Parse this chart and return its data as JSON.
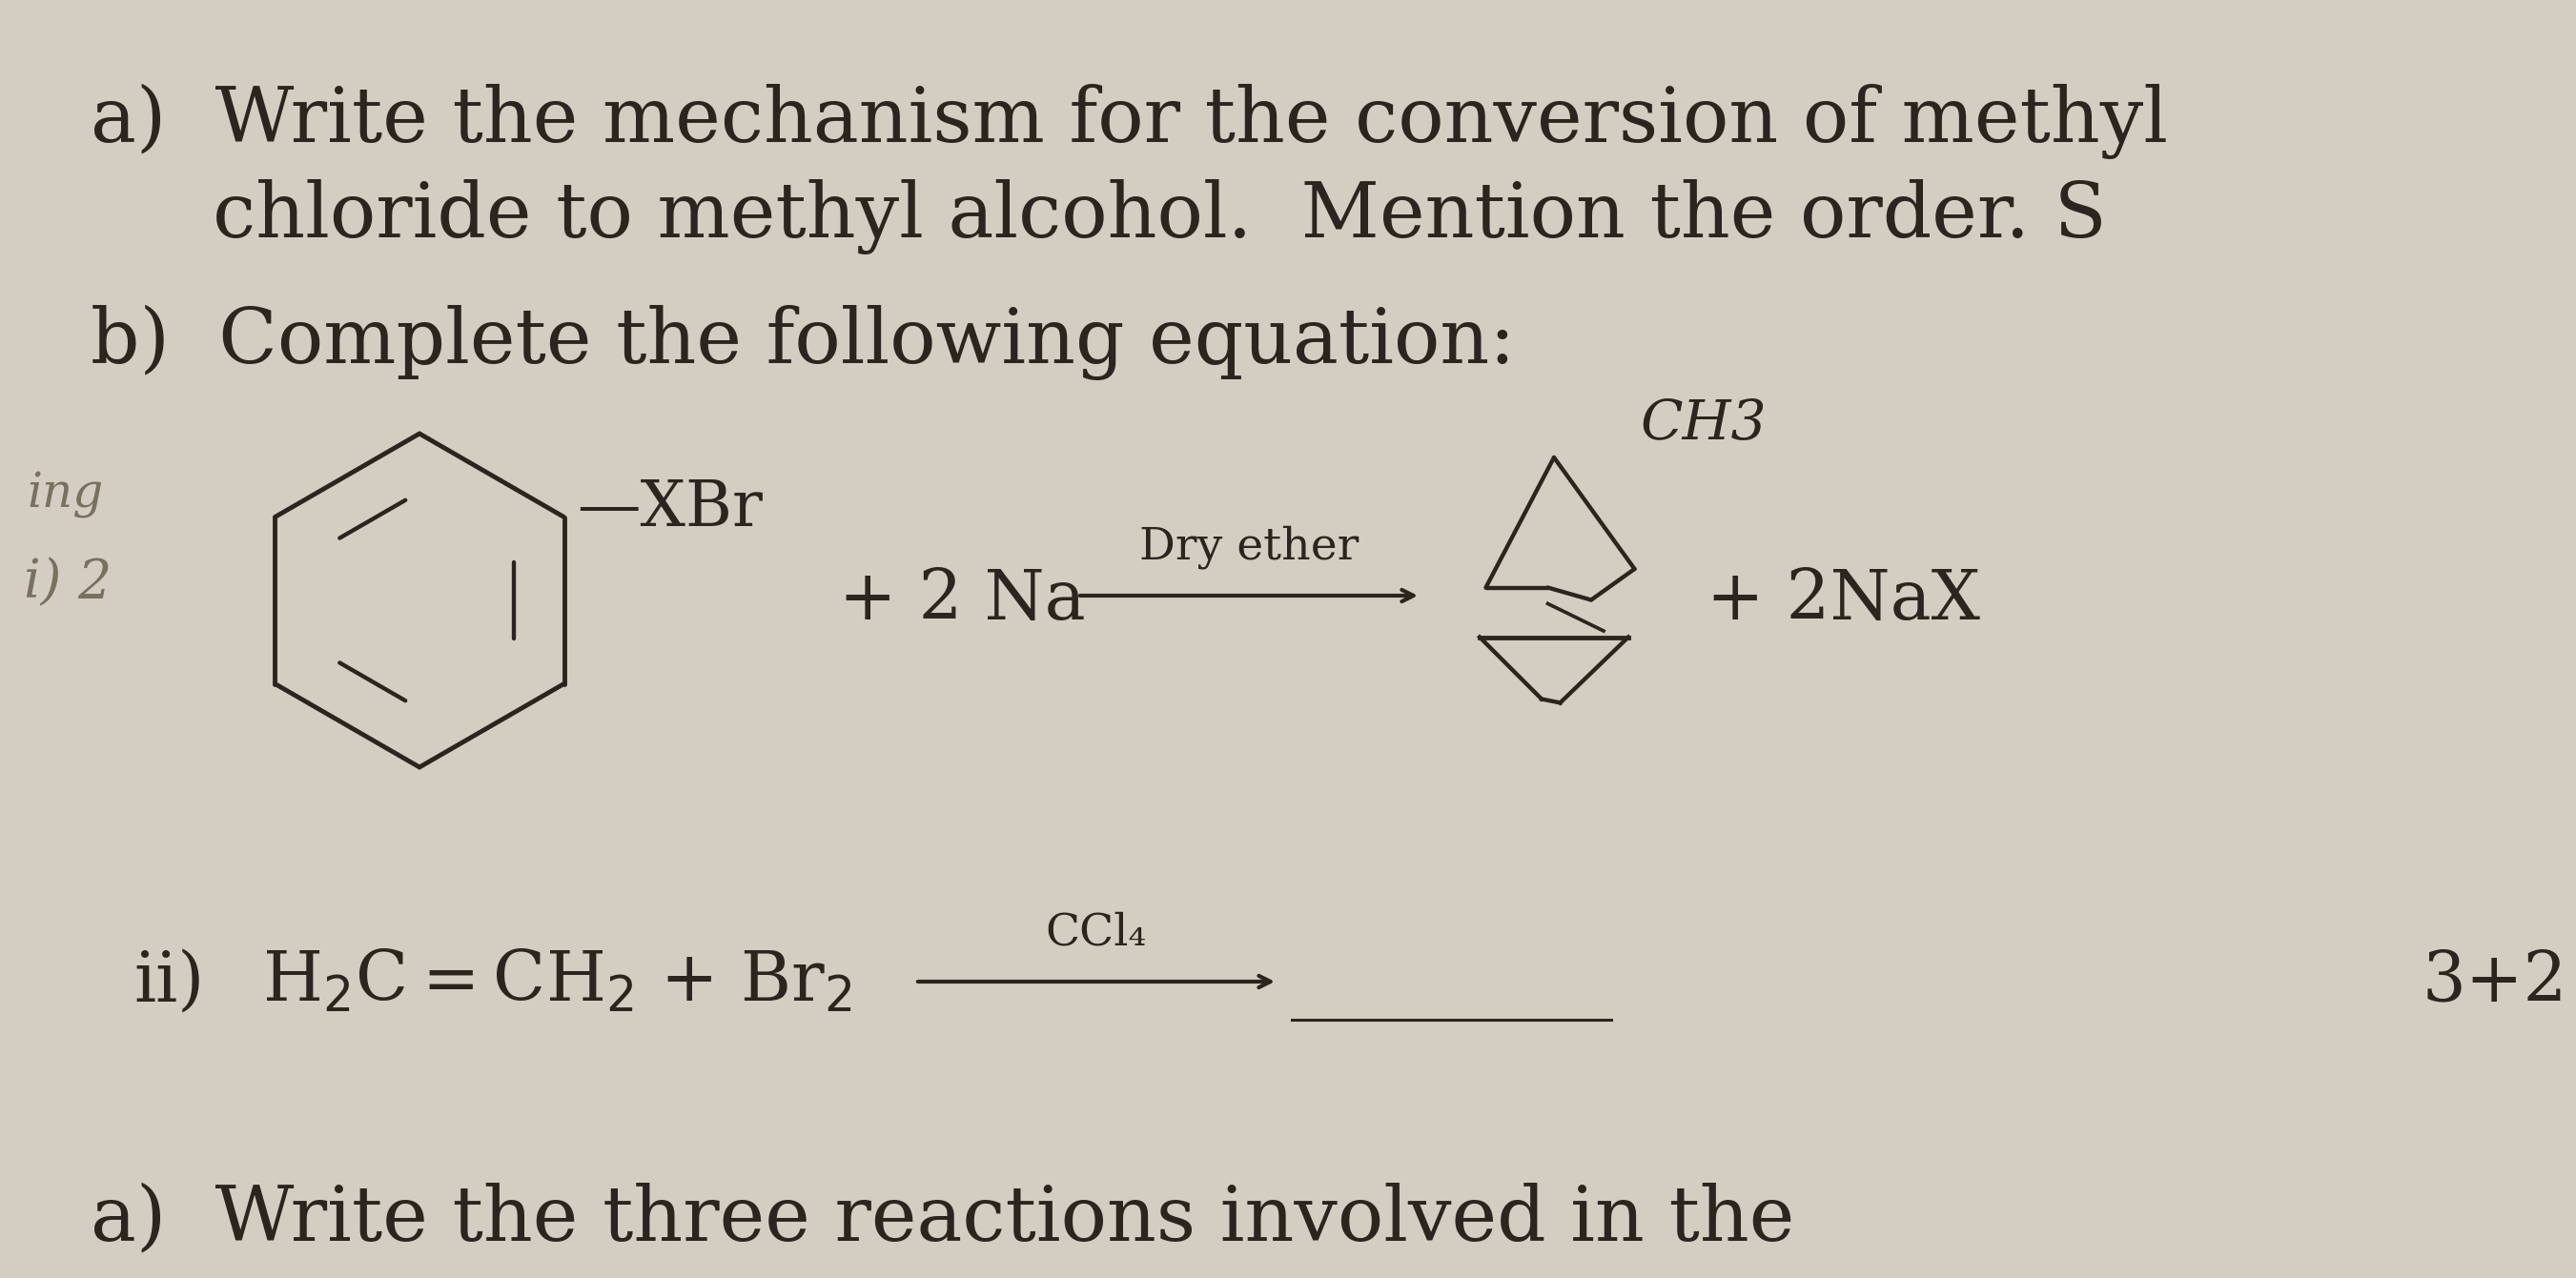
{
  "bg_color": "#d4cec2",
  "text_color": "#2a2520",
  "title_a_line1": "a)  Write the mechanism for the conversion of methyl",
  "title_a_line2": "     chloride to methyl alcohol.  Mention the order. S",
  "title_b": "b)  Complete the following equation:",
  "dry_ether": "Dry ether",
  "plus_2nax": "+ 2NaX",
  "ch3_label": "CH3",
  "score": "3+2",
  "bottom_text": "a)  Write the three reactions involved in the",
  "font_size_title": 58,
  "font_size_body": 52,
  "font_size_small": 38,
  "font_size_annotation": 34,
  "lw_structure": 3.5,
  "lw_arrow": 3.0
}
